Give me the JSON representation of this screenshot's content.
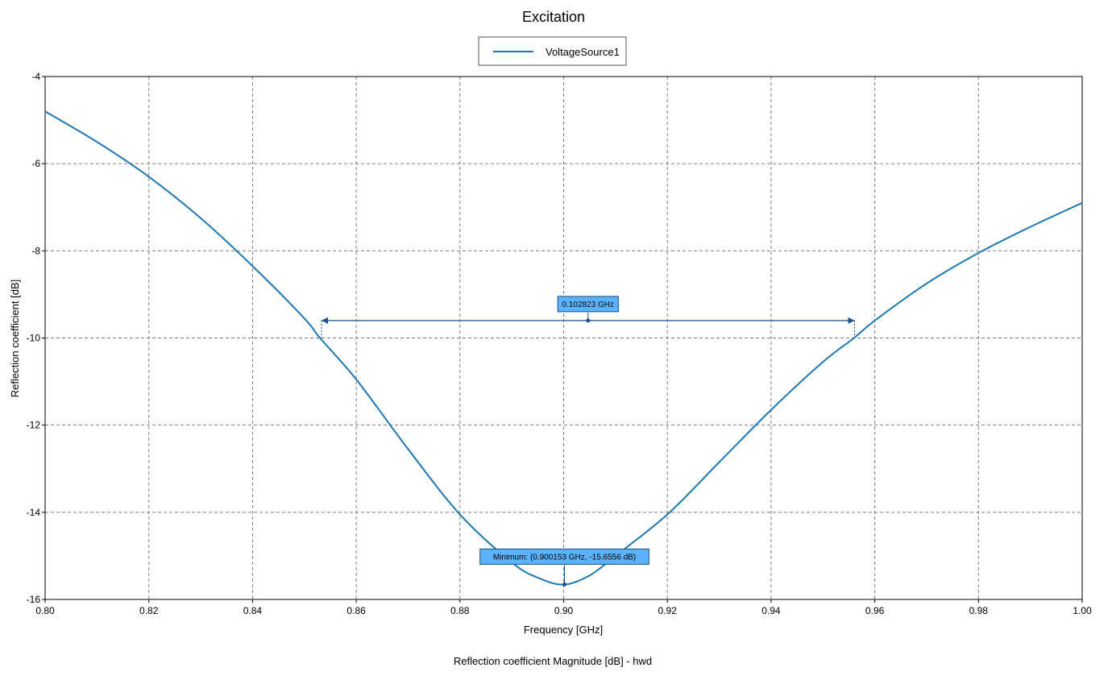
{
  "chart_data": {
    "type": "line",
    "title": "Excitation",
    "xlabel": "Frequency [GHz]",
    "ylabel": "Reflection coefficient [dB]",
    "footer": "Reflection coefficient Magnitude [dB] - hwd",
    "xlim": [
      0.8,
      1.0
    ],
    "ylim": [
      -16,
      -4
    ],
    "x_ticks": [
      "0.80",
      "0.82",
      "0.84",
      "0.86",
      "0.88",
      "0.90",
      "0.92",
      "0.94",
      "0.96",
      "0.98",
      "1.00"
    ],
    "y_ticks": [
      "-4",
      "-6",
      "-8",
      "-10",
      "-12",
      "-14",
      "-16"
    ],
    "grid": true,
    "legend_position": "top-center",
    "series": [
      {
        "name": "VoltageSource1",
        "color": "#1f77b4",
        "x": [
          0.8,
          0.81,
          0.82,
          0.83,
          0.84,
          0.85,
          0.853,
          0.86,
          0.87,
          0.88,
          0.89,
          0.895,
          0.9,
          0.905,
          0.91,
          0.92,
          0.93,
          0.94,
          0.95,
          0.956,
          0.96,
          0.97,
          0.98,
          0.99,
          1.0
        ],
        "y": [
          -4.8,
          -5.5,
          -6.3,
          -7.25,
          -8.35,
          -9.55,
          -10.0,
          -10.95,
          -12.55,
          -14.05,
          -15.15,
          -15.5,
          -15.66,
          -15.45,
          -15.0,
          -14.05,
          -12.85,
          -11.65,
          -10.55,
          -10.0,
          -9.6,
          -8.75,
          -8.05,
          -7.45,
          -6.9
        ]
      }
    ],
    "annotations": [
      {
        "type": "bandwidth",
        "label": "0.102823 GHz",
        "x_start": 0.8533,
        "x_end": 0.9561,
        "y": -9.6,
        "color": "#1a4f8a",
        "box_color": "#5bb3ff"
      },
      {
        "type": "marker",
        "label": "Minimum: (0.900153 GHz, -15.6556 dB)",
        "x": 0.900153,
        "y": -15.6556,
        "color": "#1a4f8a",
        "box_color": "#5bb3ff"
      }
    ]
  }
}
